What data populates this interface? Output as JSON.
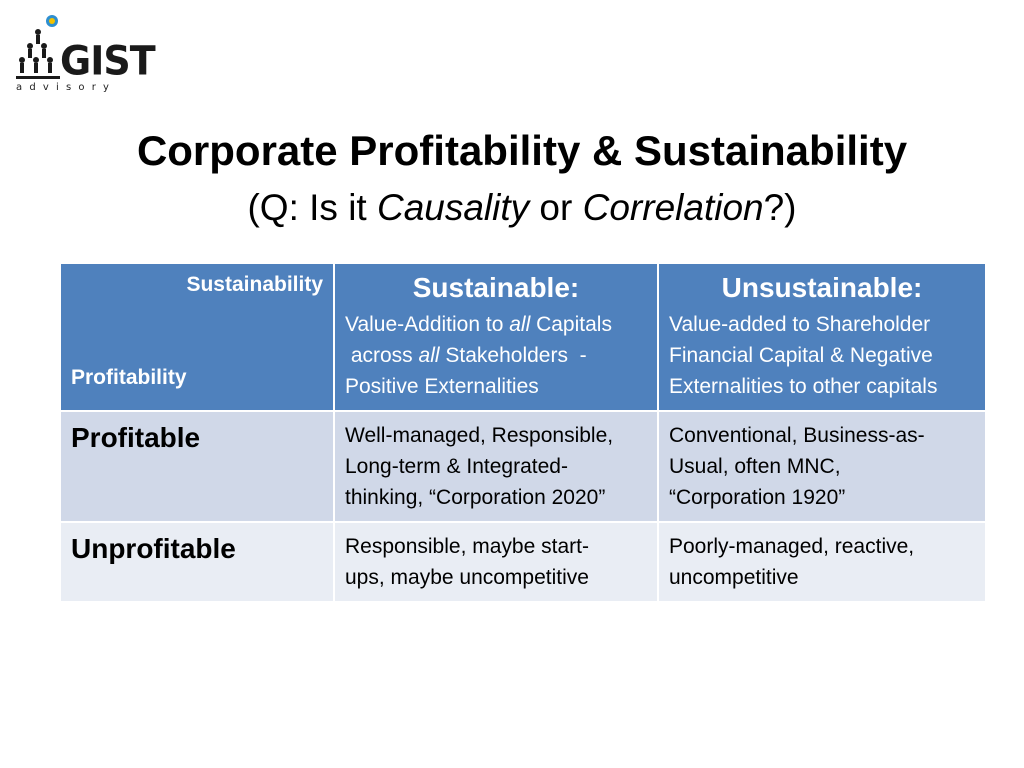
{
  "logo": {
    "name": "GIST",
    "tagline": "advisory"
  },
  "slide": {
    "title": "Corporate Profitability & Sustainability",
    "subtitle": {
      "open": "(Q: Is it ",
      "term1": "Causality",
      "joiner": " or ",
      "term2": "Correlation",
      "close": "?)"
    }
  },
  "matrix": {
    "corner": {
      "column_axis": "Sustainability",
      "row_axis": "Profitability"
    },
    "columns": [
      {
        "heading": "Sustainable:",
        "parts": [
          "Value-Addition to ",
          "all",
          " Capitals",
          " across ",
          "all",
          " Stakeholders  -",
          "Positive Externalities"
        ]
      },
      {
        "heading": "Unsustainable:",
        "lines": [
          "Value-added to Shareholder",
          "Financial Capital & Negative",
          "Externalities to other capitals"
        ]
      }
    ],
    "rows": [
      {
        "label": "Profitable",
        "sustainable": [
          "Well-managed, Responsible,",
          "Long-term & Integrated-",
          "thinking, “Corporation 2020”"
        ],
        "unsustainable": [
          "Conventional, Business-as-",
          "Usual, often MNC,",
          "“Corporation 1920”"
        ]
      },
      {
        "label": "Unprofitable",
        "sustainable": [
          "Responsible, maybe start-",
          "ups, maybe uncompetitive"
        ],
        "unsustainable": [
          "Poorly-managed, reactive,",
          "uncompetitive"
        ]
      }
    ]
  }
}
